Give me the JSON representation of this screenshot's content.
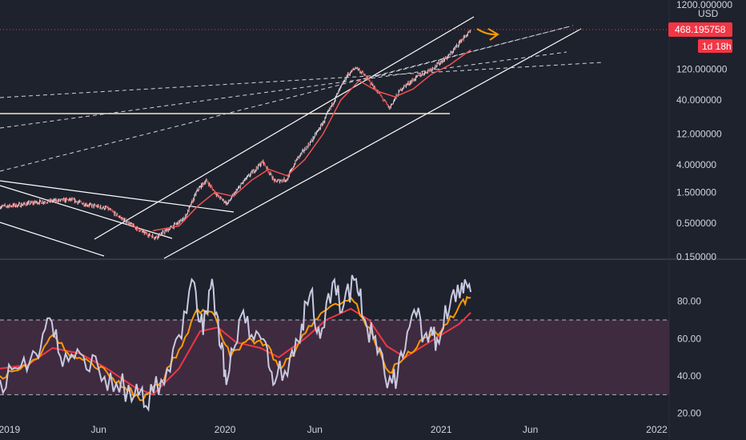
{
  "colors": {
    "background": "#1e222d",
    "candle_up": "#e0e3eb",
    "candle_down": "#ef5350",
    "ma_line": "#ef5350",
    "trend_line": "#ffffff",
    "arrow": "#ff9800",
    "rsi_fast": "#c9c9e0",
    "rsi_mid": "#ff9800",
    "rsi_slow": "#f23645",
    "rsi_band": "#4a2f47",
    "price_tag": "#f23645"
  },
  "chart_data": [
    {
      "type": "candlestick",
      "log_scale": true,
      "currency": "USD",
      "y_ticks": [
        "1200.000000",
        "120.000000",
        "40.000000",
        "12.000000",
        "4.000000",
        "1.500000",
        "0.500000",
        "0.150000"
      ],
      "y_tick_values": [
        1200,
        120,
        40,
        12,
        4,
        1.5,
        0.5,
        0.15
      ],
      "ylim": [
        0.15,
        1200
      ],
      "x_ticks": [
        "2019",
        "Jun",
        "2020",
        "Jun",
        "2021",
        "Jun",
        "2022"
      ],
      "x_tick_dates": [
        "2019-01-01",
        "2019-06-01",
        "2020-01-01",
        "2020-06-01",
        "2021-01-01",
        "2021-06-01",
        "2022-01-01"
      ],
      "xlim": [
        "2018-12-16",
        "2022-01-22"
      ],
      "last_price": "468.195758",
      "countdown": "1d 18h",
      "last_value": 468.195758,
      "price_path": [
        [
          "2018-12-16",
          0.9
        ],
        [
          "2019-01-15",
          0.95
        ],
        [
          "2019-02-15",
          1.05
        ],
        [
          "2019-03-15",
          1.1
        ],
        [
          "2019-04-15",
          1.15
        ],
        [
          "2019-05-15",
          0.95
        ],
        [
          "2019-06-15",
          0.85
        ],
        [
          "2019-07-15",
          0.55
        ],
        [
          "2019-08-15",
          0.36
        ],
        [
          "2019-09-05",
          0.3
        ],
        [
          "2019-10-01",
          0.42
        ],
        [
          "2019-10-25",
          0.6
        ],
        [
          "2019-11-15",
          1.6
        ],
        [
          "2019-11-30",
          2.3
        ],
        [
          "2019-12-20",
          1.3
        ],
        [
          "2020-01-05",
          1.0
        ],
        [
          "2020-02-01",
          2.2
        ],
        [
          "2020-03-05",
          4.5
        ],
        [
          "2020-03-25",
          2.2
        ],
        [
          "2020-04-15",
          2.4
        ],
        [
          "2020-05-01",
          4.8
        ],
        [
          "2020-05-25",
          9.0
        ],
        [
          "2020-06-15",
          18
        ],
        [
          "2020-07-05",
          42
        ],
        [
          "2020-07-25",
          95
        ],
        [
          "2020-08-10",
          130
        ],
        [
          "2020-08-25",
          95
        ],
        [
          "2020-09-15",
          55
        ],
        [
          "2020-10-05",
          30
        ],
        [
          "2020-10-25",
          60
        ],
        [
          "2020-11-20",
          90
        ],
        [
          "2020-12-20",
          130
        ],
        [
          "2021-01-15",
          200
        ],
        [
          "2021-02-05",
          350
        ],
        [
          "2021-02-20",
          468.195758
        ]
      ],
      "ma_path": [
        [
          "2019-09-01",
          0.38
        ],
        [
          "2019-10-15",
          0.45
        ],
        [
          "2019-11-15",
          0.9
        ],
        [
          "2019-12-15",
          1.5
        ],
        [
          "2020-01-15",
          1.3
        ],
        [
          "2020-02-15",
          2.3
        ],
        [
          "2020-03-15",
          3.4
        ],
        [
          "2020-04-15",
          2.7
        ],
        [
          "2020-05-15",
          4.8
        ],
        [
          "2020-06-15",
          12
        ],
        [
          "2020-07-15",
          40
        ],
        [
          "2020-08-15",
          80
        ],
        [
          "2020-09-15",
          55
        ],
        [
          "2020-10-15",
          45
        ],
        [
          "2020-11-15",
          60
        ],
        [
          "2020-12-15",
          100
        ],
        [
          "2021-01-15",
          140
        ],
        [
          "2021-02-20",
          240
        ]
      ],
      "series": []
    },
    {
      "type": "line",
      "y_ticks": [
        "80.00",
        "60.00",
        "40.00",
        "20.00"
      ],
      "y_tick_values": [
        80,
        60,
        40,
        20
      ],
      "ylim": [
        19,
        100
      ],
      "band": [
        30,
        70
      ],
      "series": [
        {
          "key": "fast",
          "points": [
            [
              "2018-12-16",
              38
            ],
            [
              "2019-01-15",
              44
            ],
            [
              "2019-02-15",
              52
            ],
            [
              "2019-03-10",
              71
            ],
            [
              "2019-04-01",
              45
            ],
            [
              "2019-05-01",
              52
            ],
            [
              "2019-06-01",
              44
            ],
            [
              "2019-07-01",
              36
            ],
            [
              "2019-08-01",
              30
            ],
            [
              "2019-08-20",
              24
            ],
            [
              "2019-09-15",
              38
            ],
            [
              "2019-10-15",
              62
            ],
            [
              "2019-11-10",
              90
            ],
            [
              "2019-11-25",
              62
            ],
            [
              "2019-12-10",
              92
            ],
            [
              "2019-12-25",
              55
            ],
            [
              "2020-01-05",
              38
            ],
            [
              "2020-01-25",
              70
            ],
            [
              "2020-02-15",
              62
            ],
            [
              "2020-03-10",
              58
            ],
            [
              "2020-03-25",
              36
            ],
            [
              "2020-04-20",
              50
            ],
            [
              "2020-05-10",
              68
            ],
            [
              "2020-05-25",
              85
            ],
            [
              "2020-06-10",
              60
            ],
            [
              "2020-07-01",
              90
            ],
            [
              "2020-07-20",
              78
            ],
            [
              "2020-08-10",
              92
            ],
            [
              "2020-08-25",
              70
            ],
            [
              "2020-09-15",
              52
            ],
            [
              "2020-10-10",
              36
            ],
            [
              "2020-10-28",
              50
            ],
            [
              "2020-11-20",
              72
            ],
            [
              "2020-12-10",
              58
            ],
            [
              "2020-12-25",
              60
            ],
            [
              "2021-01-15",
              76
            ],
            [
              "2021-02-05",
              90
            ],
            [
              "2021-02-20",
              85
            ]
          ]
        },
        {
          "key": "mid",
          "points": [
            [
              "2018-12-16",
              40
            ],
            [
              "2019-01-15",
              43
            ],
            [
              "2019-02-15",
              49
            ],
            [
              "2019-03-15",
              62
            ],
            [
              "2019-04-15",
              50
            ],
            [
              "2019-05-15",
              48
            ],
            [
              "2019-06-15",
              42
            ],
            [
              "2019-07-15",
              34
            ],
            [
              "2019-08-15",
              27
            ],
            [
              "2019-09-15",
              37
            ],
            [
              "2019-10-15",
              54
            ],
            [
              "2019-11-15",
              76
            ],
            [
              "2019-12-15",
              72
            ],
            [
              "2020-01-10",
              50
            ],
            [
              "2020-02-10",
              60
            ],
            [
              "2020-03-10",
              57
            ],
            [
              "2020-04-05",
              44
            ],
            [
              "2020-05-01",
              55
            ],
            [
              "2020-06-01",
              70
            ],
            [
              "2020-07-01",
              78
            ],
            [
              "2020-08-01",
              82
            ],
            [
              "2020-09-01",
              66
            ],
            [
              "2020-10-05",
              42
            ],
            [
              "2020-11-01",
              50
            ],
            [
              "2020-12-01",
              60
            ],
            [
              "2021-01-01",
              64
            ],
            [
              "2021-02-01",
              78
            ],
            [
              "2021-02-20",
              82
            ]
          ]
        },
        {
          "key": "slow",
          "points": [
            [
              "2018-12-16",
              44
            ],
            [
              "2019-02-01",
              46
            ],
            [
              "2019-03-15",
              55
            ],
            [
              "2019-05-01",
              52
            ],
            [
              "2019-06-15",
              44
            ],
            [
              "2019-08-01",
              34
            ],
            [
              "2019-09-01",
              30
            ],
            [
              "2019-10-15",
              44
            ],
            [
              "2019-11-20",
              64
            ],
            [
              "2019-12-20",
              66
            ],
            [
              "2020-01-20",
              58
            ],
            [
              "2020-03-01",
              55
            ],
            [
              "2020-04-01",
              50
            ],
            [
              "2020-05-15",
              60
            ],
            [
              "2020-06-20",
              70
            ],
            [
              "2020-08-01",
              76
            ],
            [
              "2020-09-01",
              70
            ],
            [
              "2020-10-01",
              56
            ],
            [
              "2020-11-01",
              50
            ],
            [
              "2020-12-01",
              56
            ],
            [
              "2021-01-01",
              62
            ],
            [
              "2021-02-01",
              68
            ],
            [
              "2021-02-20",
              74
            ]
          ]
        }
      ]
    }
  ]
}
